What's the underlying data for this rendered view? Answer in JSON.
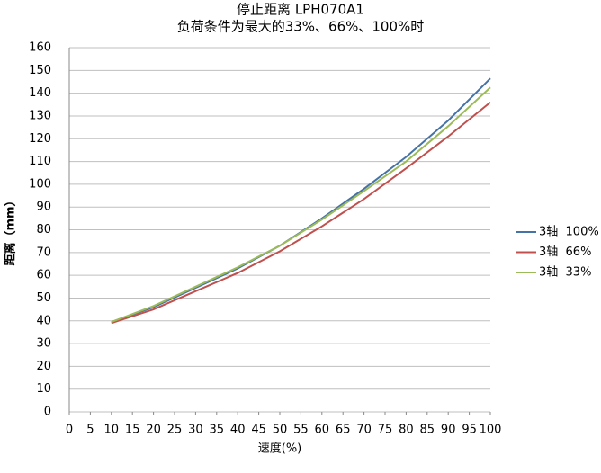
{
  "chart_data": {
    "type": "line",
    "title": "停止距离 LPH070A1",
    "subtitle": "负荷条件为最大的33%、66%、100%时",
    "x_label": "速度(%)",
    "y_label": "距离（mm）",
    "x": [
      10,
      20,
      30,
      40,
      50,
      60,
      70,
      80,
      90,
      100
    ],
    "series": [
      {
        "name": "3轴  100%",
        "color": "#4572a7",
        "values": [
          39.5,
          46,
          54.5,
          63,
          73,
          85,
          98,
          112,
          128,
          146.5
        ]
      },
      {
        "name": "3轴  66%",
        "color": "#c0504d",
        "values": [
          39,
          45,
          53,
          61,
          70.5,
          81.5,
          93.5,
          107,
          121,
          136
        ]
      },
      {
        "name": "3轴  33%",
        "color": "#9bbb59",
        "values": [
          39.5,
          46.5,
          55,
          63.5,
          73,
          84.5,
          97,
          110,
          125.5,
          142.5
        ]
      }
    ],
    "xlim": [
      0,
      100
    ],
    "xticks": [
      0,
      5,
      10,
      15,
      20,
      25,
      30,
      35,
      40,
      45,
      50,
      55,
      60,
      65,
      70,
      75,
      80,
      85,
      90,
      95,
      100
    ],
    "ylim": [
      0,
      160
    ],
    "yticks": [
      0,
      10,
      20,
      30,
      40,
      50,
      60,
      70,
      80,
      90,
      100,
      110,
      120,
      130,
      140,
      150,
      160
    ],
    "grid": true,
    "legend": "right"
  }
}
